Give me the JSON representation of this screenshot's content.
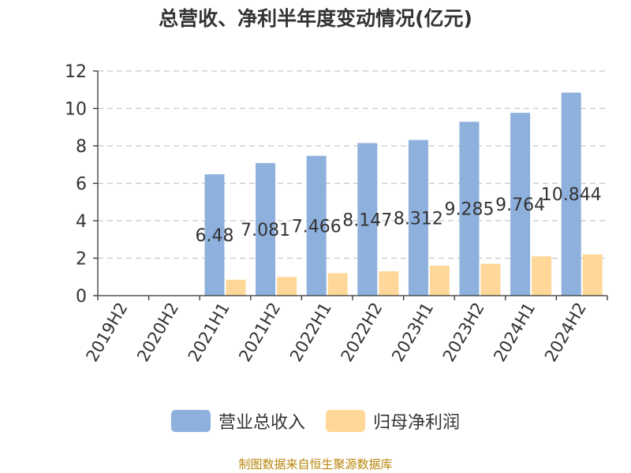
{
  "chart_data": {
    "type": "bar",
    "title": "总营收、净利半年度变动情况(亿元)",
    "categories": [
      "2019H2",
      "2020H2",
      "2021H1",
      "2021H2",
      "2022H1",
      "2022H2",
      "2023H1",
      "2023H2",
      "2024H1",
      "2024H2"
    ],
    "series": [
      {
        "name": "营业总收入",
        "color": "#8eb0dd",
        "values": [
          null,
          null,
          6.48,
          7.081,
          7.466,
          8.147,
          8.312,
          9.285,
          9.764,
          10.844
        ],
        "labels": [
          "",
          "",
          "6.48",
          "7.081",
          "7.466",
          "8.147",
          "8.312",
          "9.285",
          "9.764",
          "10.844"
        ]
      },
      {
        "name": "归母净利润",
        "color": "#ffd899",
        "values": [
          null,
          null,
          0.85,
          1.0,
          1.2,
          1.3,
          1.6,
          1.7,
          2.1,
          2.2
        ]
      }
    ],
    "ylim": [
      0,
      12
    ],
    "yticks": [
      0,
      2,
      4,
      6,
      8,
      10,
      12
    ],
    "grid": true,
    "legend_position": "bottom"
  },
  "source_text": "制图数据来自恒生聚源数据库"
}
